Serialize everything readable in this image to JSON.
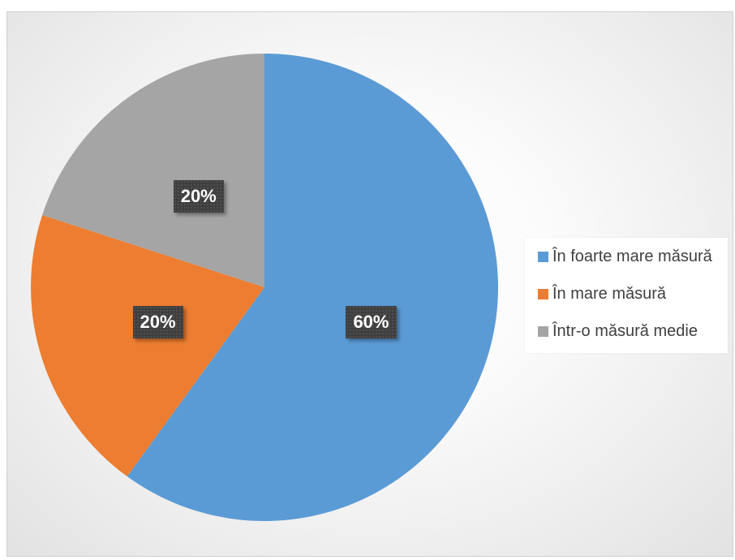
{
  "chart_data": {
    "type": "pie",
    "title": "",
    "categories": [
      "În foarte mare măsură",
      "În mare măsură",
      "Într-o măsură medie"
    ],
    "values": [
      60,
      20,
      20
    ],
    "data_labels": [
      "60%",
      "20%",
      "20%"
    ],
    "colors": [
      "#5b9bd5",
      "#ed7d31",
      "#a5a5a5"
    ],
    "start_angle_deg": 0,
    "direction": "clockwise",
    "legend_position": "right"
  }
}
